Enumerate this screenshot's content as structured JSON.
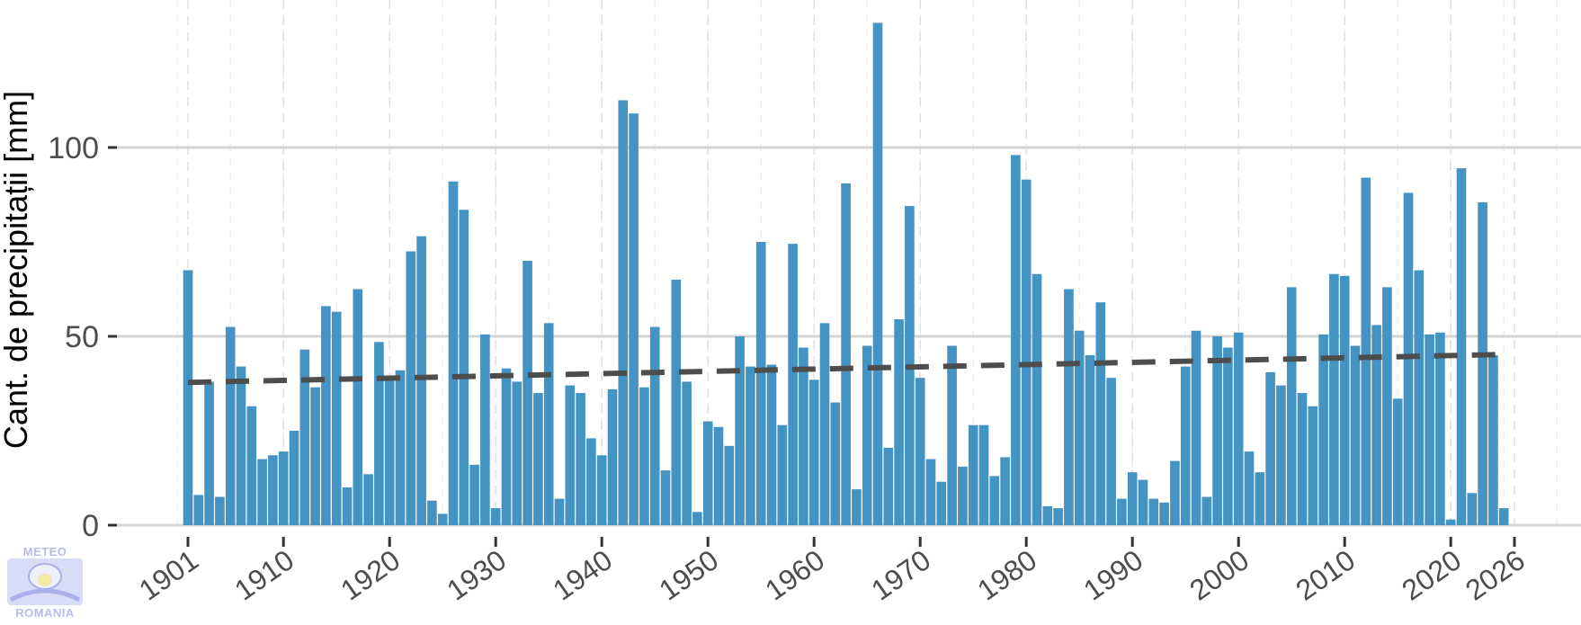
{
  "chart_data": {
    "type": "bar",
    "title": "",
    "xlabel": "",
    "ylabel": "Cant. de precipitații [mm]",
    "x_start": 1901,
    "x_end": 2025,
    "values": [
      67.5,
      8,
      38,
      7.5,
      52.5,
      42,
      31.5,
      17.5,
      18.5,
      19.5,
      25,
      46.5,
      36.5,
      58,
      56.5,
      10,
      62.5,
      13.5,
      48.5,
      39,
      41,
      72.5,
      76.5,
      6.5,
      3,
      91,
      83.5,
      16,
      50.5,
      4.5,
      41.5,
      38,
      70,
      35,
      53.5,
      7,
      37,
      35,
      23,
      18.5,
      36,
      112.5,
      109,
      36.5,
      52.5,
      14.5,
      65,
      38,
      3.5,
      27.5,
      26,
      21,
      50,
      42,
      75,
      42.5,
      26.5,
      74.5,
      47,
      38.5,
      53.5,
      32.5,
      90.5,
      9.5,
      47.5,
      133,
      20.5,
      54.5,
      84.5,
      39,
      17.5,
      11.5,
      47.5,
      15.5,
      26.5,
      26.5,
      13,
      18,
      98,
      91.5,
      66.5,
      5,
      4.5,
      62.5,
      51.5,
      45,
      59,
      39,
      7,
      14,
      12,
      7,
      6,
      17,
      42,
      51.5,
      7.5,
      50,
      47,
      51,
      19.5,
      14,
      40.5,
      37,
      63,
      35,
      31.5,
      50.5,
      66.5,
      66,
      47.5,
      92,
      53,
      63,
      33.5,
      88,
      67.5,
      50.5,
      51,
      1.5,
      94.5,
      8.5,
      85.5,
      45,
      4.5
    ],
    "trend": {
      "start": 37.8,
      "end": 45.2
    },
    "xticks": [
      "1901",
      "1910",
      "1920",
      "1930",
      "1940",
      "1950",
      "1960",
      "1970",
      "1980",
      "1990",
      "2000",
      "2010",
      "2020",
      "2026"
    ],
    "yticks": [
      "0",
      "50",
      "100"
    ],
    "ylim": [
      0,
      133
    ],
    "bar_color": "#4393c3",
    "trend_color": "#4d4d4d",
    "grid": true
  },
  "logo": {
    "top_text": "METEO",
    "bottom_text": "ROMANIA"
  }
}
